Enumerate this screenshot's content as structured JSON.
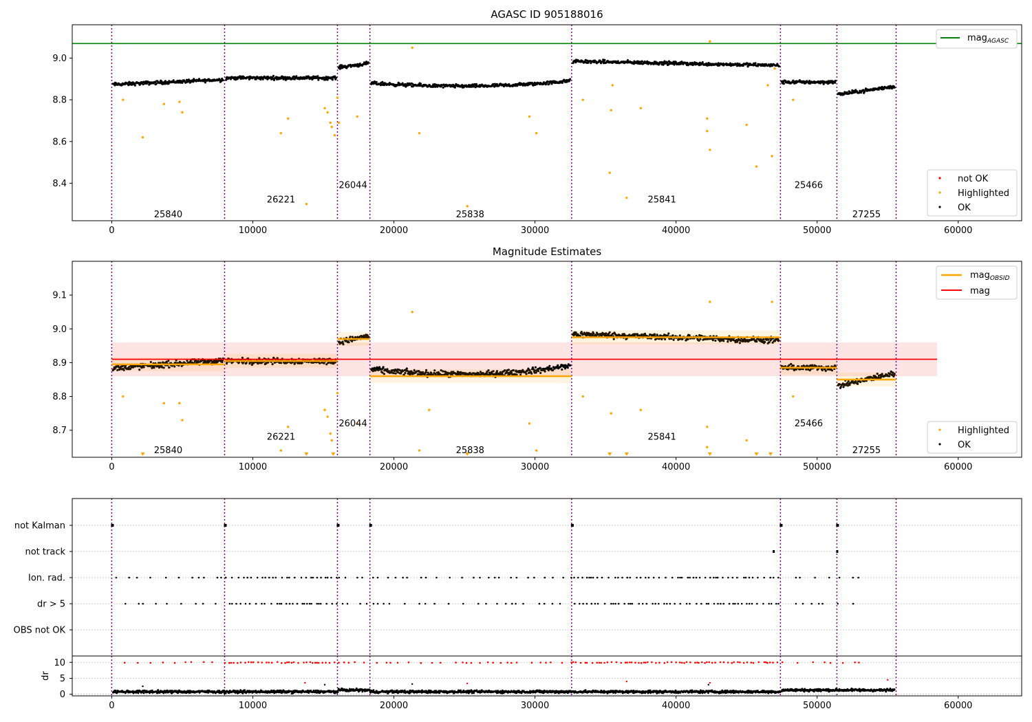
{
  "chart_data": [
    {
      "type": "scatter",
      "title": "AGASC ID 905188016",
      "xlim": [
        -2800,
        64500
      ],
      "ylim": [
        8.22,
        9.16
      ],
      "x_ticks": [
        0,
        10000,
        20000,
        30000,
        40000,
        50000,
        60000
      ],
      "y_ticks": [
        8.4,
        8.6,
        8.8,
        9.0
      ],
      "y_tick_labels": [
        "8.4",
        "8.6",
        "8.8",
        "9.0"
      ],
      "mag_agasc": 9.07,
      "obs_boundaries": [
        0,
        8000,
        16000,
        18300,
        32600,
        47400,
        51400,
        55600
      ],
      "observations": [
        {
          "obsid": "25840",
          "label_x": 4000,
          "label_y": 8.25
        },
        {
          "obsid": "26221",
          "label_x": 12000,
          "label_y": 8.32
        },
        {
          "obsid": "26044",
          "label_x": 17100,
          "label_y": 8.39
        },
        {
          "obsid": "25838",
          "label_x": 25400,
          "label_y": 8.25
        },
        {
          "obsid": "25841",
          "label_x": 39000,
          "label_y": 8.32
        },
        {
          "obsid": "25466",
          "label_x": 49400,
          "label_y": 8.39
        },
        {
          "obsid": "27255",
          "label_x": 53500,
          "label_y": 8.25
        }
      ],
      "segment_means": [
        8.885,
        8.905,
        8.965,
        8.86,
        8.975,
        8.885,
        8.845
      ],
      "highlighted_points": [
        [
          2200,
          8.62
        ],
        [
          3700,
          8.78
        ],
        [
          4800,
          8.79
        ],
        [
          5000,
          8.74
        ],
        [
          800,
          8.8
        ],
        [
          12000,
          8.64
        ],
        [
          12500,
          8.71
        ],
        [
          13800,
          8.3
        ],
        [
          15100,
          8.76
        ],
        [
          15300,
          8.74
        ],
        [
          15500,
          8.69
        ],
        [
          15600,
          8.67
        ],
        [
          15800,
          8.63
        ],
        [
          16000,
          8.81
        ],
        [
          16100,
          8.69
        ],
        [
          17400,
          8.72
        ],
        [
          21300,
          9.05
        ],
        [
          21800,
          8.64
        ],
        [
          25200,
          8.29
        ],
        [
          29600,
          8.72
        ],
        [
          30100,
          8.64
        ],
        [
          33400,
          8.8
        ],
        [
          35300,
          8.45
        ],
        [
          35400,
          8.75
        ],
        [
          35500,
          8.87
        ],
        [
          36500,
          8.33
        ],
        [
          37500,
          8.76
        ],
        [
          42200,
          8.71
        ],
        [
          42200,
          8.65
        ],
        [
          42400,
          8.56
        ],
        [
          42400,
          9.08
        ],
        [
          45000,
          8.68
        ],
        [
          45700,
          8.48
        ],
        [
          46500,
          8.87
        ],
        [
          46800,
          8.53
        ],
        [
          47000,
          8.95
        ],
        [
          48300,
          8.8
        ]
      ],
      "legend": [
        "mag_AGASC",
        "not OK",
        "Highlighted",
        "OK"
      ],
      "legend_colors": {
        "mag_AGASC": "#008000",
        "not OK": "#ff0000",
        "Highlighted": "#ffa500",
        "OK": "#000000"
      }
    },
    {
      "type": "scatter",
      "title": "Magnitude Estimates",
      "xlim": [
        -2800,
        64500
      ],
      "ylim": [
        8.62,
        9.2
      ],
      "x_ticks": [
        0,
        10000,
        20000,
        30000,
        40000,
        50000,
        60000
      ],
      "y_ticks": [
        8.7,
        8.8,
        8.9,
        9.0,
        9.1
      ],
      "y_tick_labels": [
        "8.7",
        "8.8",
        "8.9",
        "9.0",
        "9.1"
      ],
      "mag": 8.91,
      "mag_band": [
        8.86,
        8.96
      ],
      "obs_boundaries": [
        0,
        8000,
        16000,
        18300,
        32600,
        47400,
        51400,
        55600
      ],
      "observations": [
        {
          "obsid": "25840",
          "label_x": 4000,
          "label_y": 8.64
        },
        {
          "obsid": "26221",
          "label_x": 12000,
          "label_y": 8.68
        },
        {
          "obsid": "26044",
          "label_x": 17100,
          "label_y": 8.72
        },
        {
          "obsid": "25838",
          "label_x": 25400,
          "label_y": 8.64
        },
        {
          "obsid": "25841",
          "label_x": 39000,
          "label_y": 8.68
        },
        {
          "obsid": "25466",
          "label_x": 49400,
          "label_y": 8.72
        },
        {
          "obsid": "27255",
          "label_x": 53500,
          "label_y": 8.64
        }
      ],
      "segment_means": [
        8.895,
        8.905,
        8.97,
        8.86,
        8.975,
        8.885,
        8.85
      ],
      "highlighted_points": [
        [
          800,
          8.8
        ],
        [
          3700,
          8.78
        ],
        [
          4800,
          8.78
        ],
        [
          5000,
          8.73
        ],
        [
          12000,
          8.64
        ],
        [
          12500,
          8.71
        ],
        [
          15100,
          8.76
        ],
        [
          15300,
          8.74
        ],
        [
          15500,
          8.69
        ],
        [
          15600,
          8.67
        ],
        [
          16000,
          8.81
        ],
        [
          17400,
          8.72
        ],
        [
          21300,
          9.05
        ],
        [
          21800,
          8.64
        ],
        [
          22500,
          8.76
        ],
        [
          29600,
          8.72
        ],
        [
          30100,
          8.64
        ],
        [
          33400,
          8.8
        ],
        [
          35400,
          8.75
        ],
        [
          37500,
          8.76
        ],
        [
          42200,
          8.71
        ],
        [
          42200,
          8.65
        ],
        [
          42400,
          9.08
        ],
        [
          45000,
          8.67
        ],
        [
          46800,
          9.08
        ],
        [
          48300,
          8.8
        ]
      ],
      "clipped_points_x": [
        2200,
        13800,
        15700,
        25200,
        35300,
        36500,
        42400,
        45700,
        46700
      ],
      "legend_top": [
        "mag_OBSID",
        "mag"
      ],
      "legend_bottom": [
        "Highlighted",
        "OK"
      ],
      "legend_colors": {
        "mag_OBSID": "#ffa500",
        "mag": "#ff0000",
        "Highlighted": "#ffa500",
        "OK": "#000000"
      }
    },
    {
      "type": "scatter",
      "title": "",
      "xlim": [
        -2800,
        64500
      ],
      "categories": [
        "not Kalman",
        "not track",
        "Ion. rad.",
        "dr > 5",
        "OBS not OK"
      ],
      "obs_boundaries": [
        0,
        8000,
        16000,
        18300,
        32600,
        47400,
        51400,
        55600
      ],
      "flag_points": {
        "not Kalman": [
          0,
          8000,
          16000,
          18300,
          32600,
          47400,
          51400
        ],
        "not track": [
          46900,
          51400
        ]
      },
      "dr_ylabel": "dr",
      "dr_ylim": [
        -0.5,
        12
      ],
      "dr_ticks": [
        0,
        5,
        10
      ],
      "dr_tick_labels": [
        "0",
        "5",
        "10"
      ],
      "x_ticks": [
        0,
        10000,
        20000,
        30000,
        40000,
        50000,
        60000
      ],
      "x_tick_labels": [
        "0",
        "10000",
        "20000",
        "30000",
        "40000",
        "50000",
        "60000"
      ],
      "dr_notable_points": [
        [
          2200,
          2.5
        ],
        [
          13700,
          3.6
        ],
        [
          15100,
          3
        ],
        [
          21300,
          3.2
        ],
        [
          25200,
          3.4
        ],
        [
          36500,
          4
        ],
        [
          42300,
          3
        ],
        [
          42400,
          3.6
        ],
        [
          55000,
          4.5
        ]
      ]
    }
  ]
}
